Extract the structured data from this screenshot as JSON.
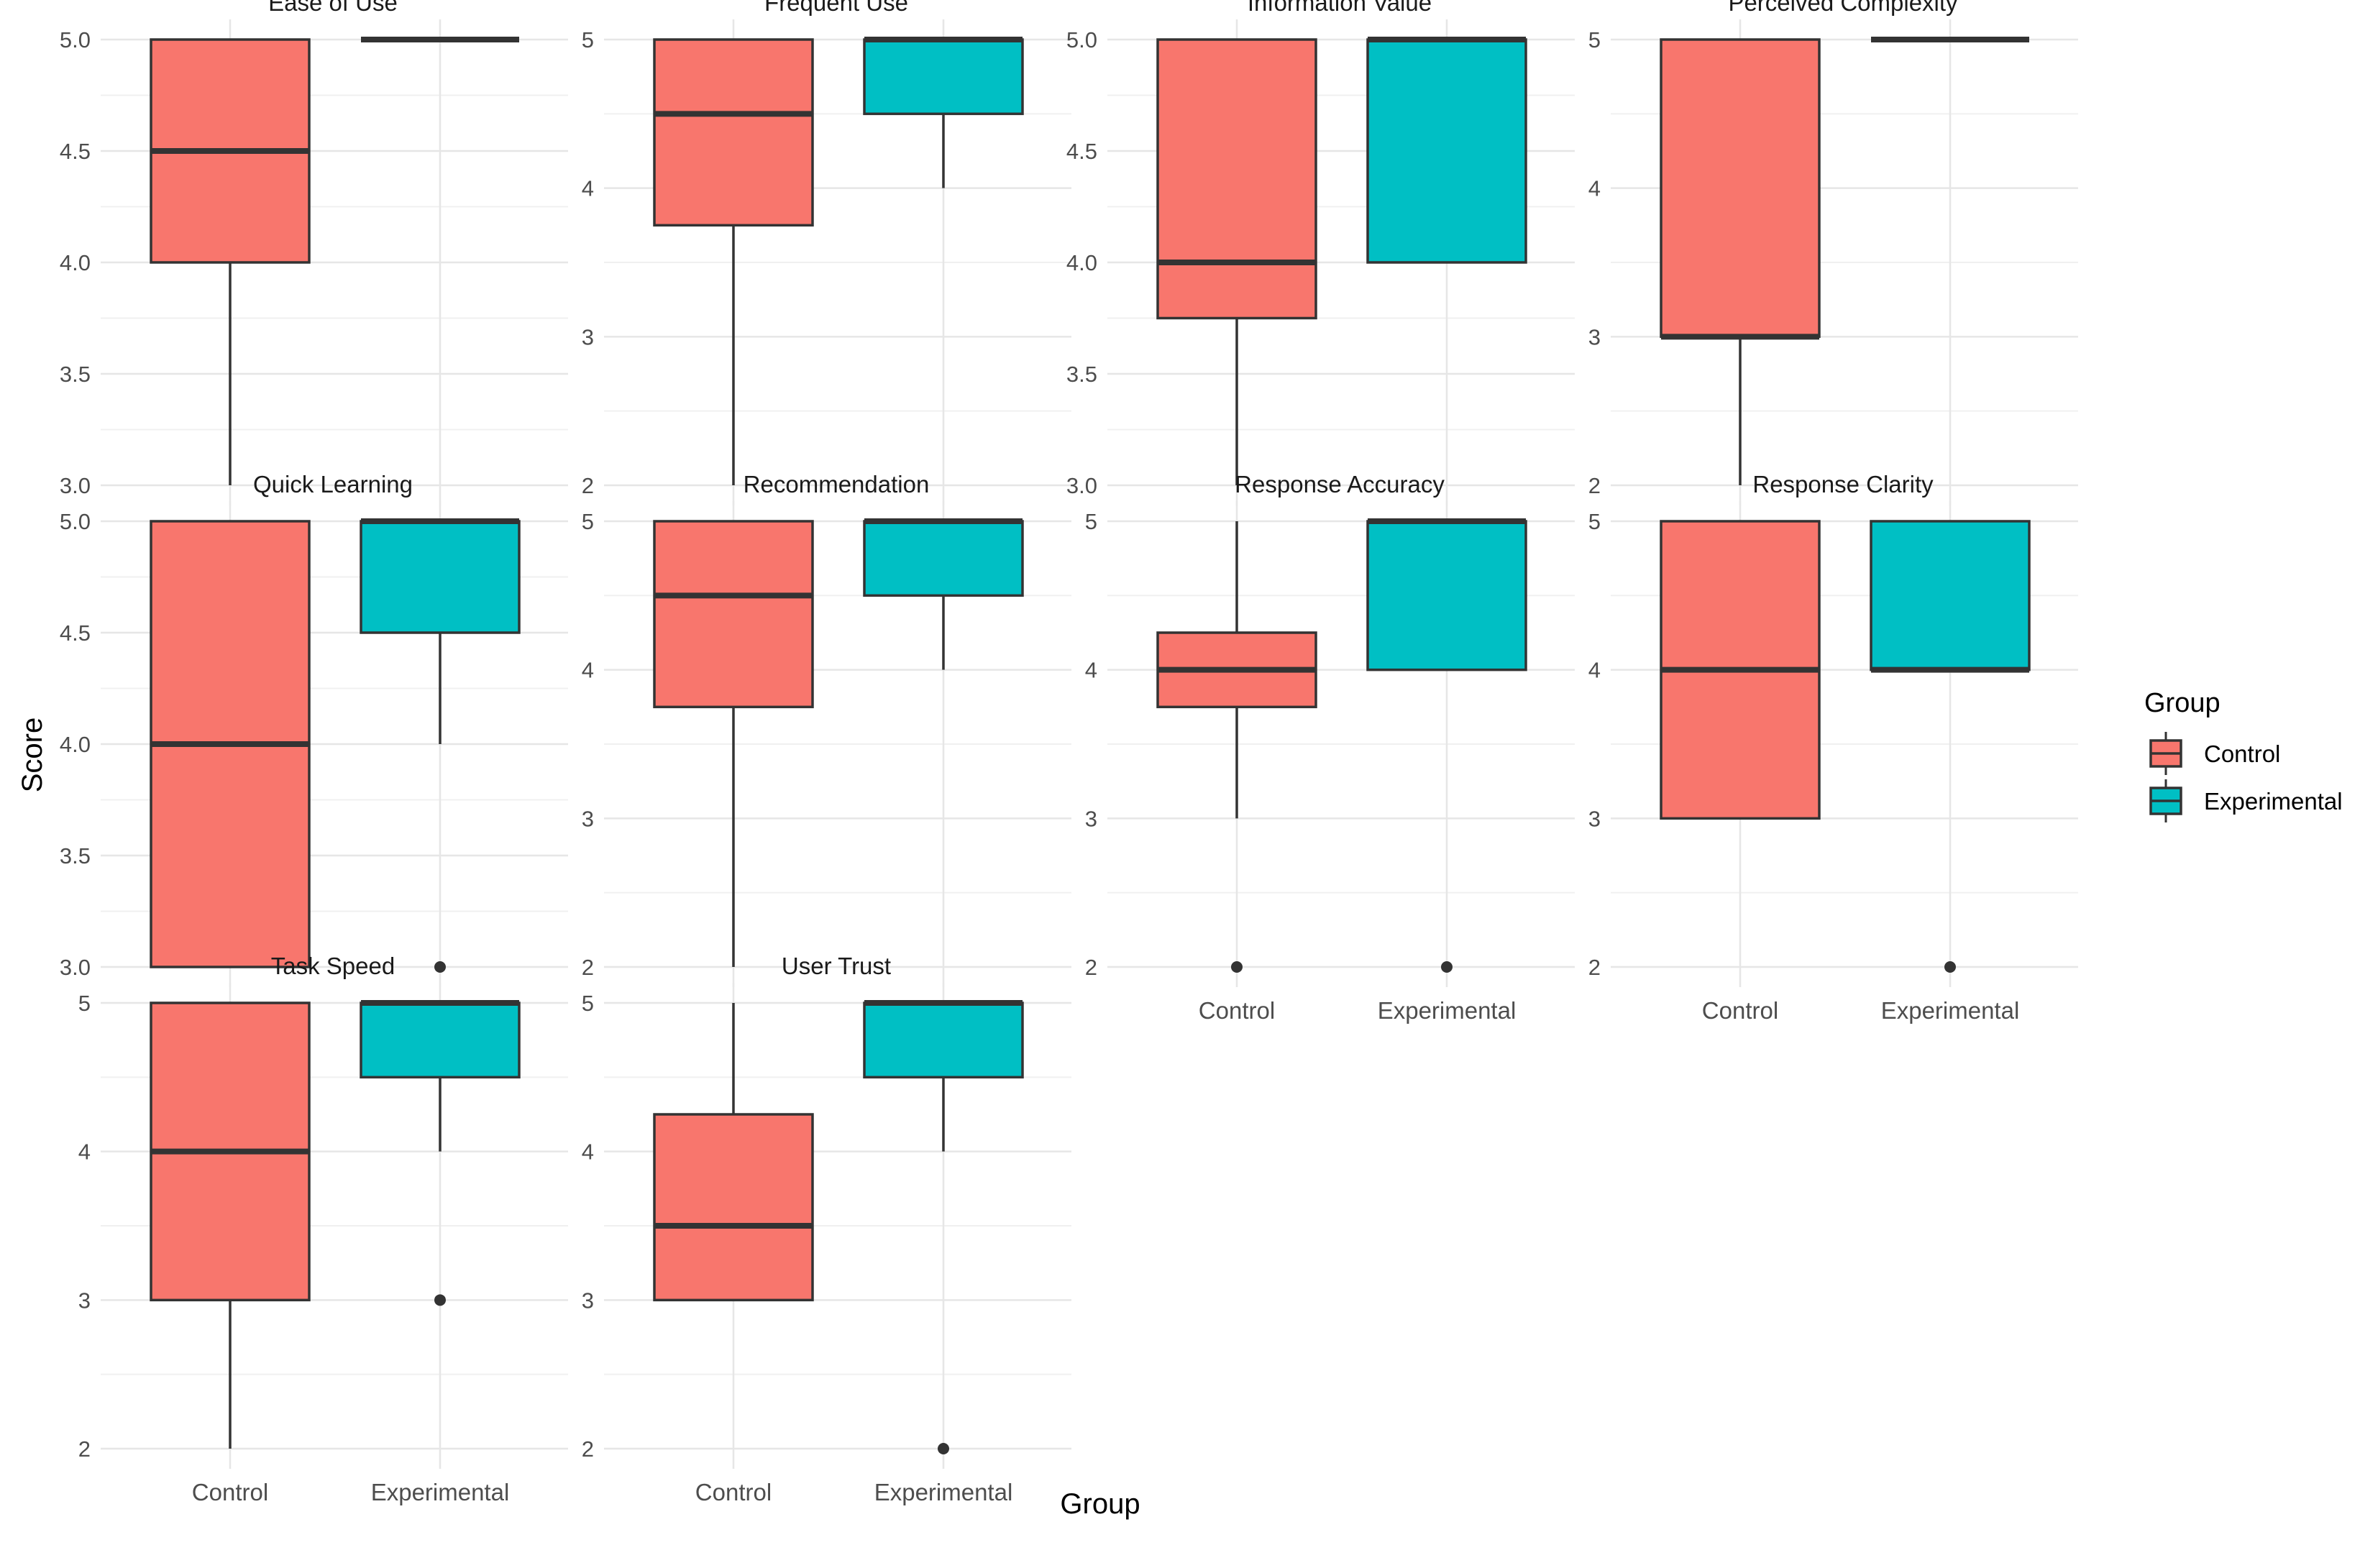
{
  "chart_data": {
    "type": "boxplot",
    "xlabel": "Group",
    "ylabel": "Score",
    "categories": [
      "Control",
      "Experimental"
    ],
    "colors": {
      "Control": "#F8766D",
      "Experimental": "#00BFC4"
    },
    "legend": {
      "title": "Group",
      "entries": [
        "Control",
        "Experimental"
      ],
      "position": "right"
    },
    "panels": [
      {
        "title": "Ease of Use",
        "ylim": [
          3.0,
          5.0
        ],
        "yticks": [
          "3.0",
          "3.5",
          "4.0",
          "4.5",
          "5.0"
        ],
        "boxes": [
          {
            "group": "Control",
            "low": 3.0,
            "q1": 4.0,
            "median": 4.5,
            "q3": 5.0,
            "high": 5.0,
            "outliers": []
          },
          {
            "group": "Experimental",
            "low": 5.0,
            "q1": 5.0,
            "median": 5.0,
            "q3": 5.0,
            "high": 5.0,
            "outliers": []
          }
        ]
      },
      {
        "title": "Frequent Use",
        "ylim": [
          2,
          5
        ],
        "yticks": [
          "2",
          "3",
          "4",
          "5"
        ],
        "boxes": [
          {
            "group": "Control",
            "low": 2,
            "q1": 3.75,
            "median": 4.5,
            "q3": 5,
            "high": 5,
            "outliers": []
          },
          {
            "group": "Experimental",
            "low": 4,
            "q1": 4.5,
            "median": 5,
            "q3": 5,
            "high": 5,
            "outliers": []
          }
        ]
      },
      {
        "title": "Information Value",
        "ylim": [
          3.0,
          5.0
        ],
        "yticks": [
          "3.0",
          "3.5",
          "4.0",
          "4.5",
          "5.0"
        ],
        "boxes": [
          {
            "group": "Control",
            "low": 3.0,
            "q1": 3.75,
            "median": 4.0,
            "q3": 5.0,
            "high": 5.0,
            "outliers": []
          },
          {
            "group": "Experimental",
            "low": 4.0,
            "q1": 4.0,
            "median": 5.0,
            "q3": 5.0,
            "high": 5.0,
            "outliers": []
          }
        ]
      },
      {
        "title": "Perceived Complexity",
        "ylim": [
          2,
          5
        ],
        "yticks": [
          "2",
          "3",
          "4",
          "5"
        ],
        "boxes": [
          {
            "group": "Control",
            "low": 2,
            "q1": 3,
            "median": 3,
            "q3": 5,
            "high": 5,
            "outliers": []
          },
          {
            "group": "Experimental",
            "low": 5,
            "q1": 5,
            "median": 5,
            "q3": 5,
            "high": 5,
            "outliers": []
          }
        ]
      },
      {
        "title": "Quick Learning",
        "ylim": [
          3.0,
          5.0
        ],
        "yticks": [
          "3.0",
          "3.5",
          "4.0",
          "4.5",
          "5.0"
        ],
        "boxes": [
          {
            "group": "Control",
            "low": 3.0,
            "q1": 3.0,
            "median": 4.0,
            "q3": 5.0,
            "high": 5.0,
            "outliers": []
          },
          {
            "group": "Experimental",
            "low": 4.0,
            "q1": 4.5,
            "median": 5.0,
            "q3": 5.0,
            "high": 5.0,
            "outliers": [
              3.0
            ]
          }
        ]
      },
      {
        "title": "Recommendation",
        "ylim": [
          2,
          5
        ],
        "yticks": [
          "2",
          "3",
          "4",
          "5"
        ],
        "boxes": [
          {
            "group": "Control",
            "low": 2,
            "q1": 3.75,
            "median": 4.5,
            "q3": 5,
            "high": 5,
            "outliers": []
          },
          {
            "group": "Experimental",
            "low": 4,
            "q1": 4.5,
            "median": 5,
            "q3": 5,
            "high": 5,
            "outliers": []
          }
        ]
      },
      {
        "title": "Response Accuracy",
        "ylim": [
          2,
          5
        ],
        "yticks": [
          "2",
          "3",
          "4",
          "5"
        ],
        "boxes": [
          {
            "group": "Control",
            "low": 3,
            "q1": 3.75,
            "median": 4,
            "q3": 4.25,
            "high": 5,
            "outliers": [
              2
            ]
          },
          {
            "group": "Experimental",
            "low": 4,
            "q1": 4,
            "median": 5,
            "q3": 5,
            "high": 5,
            "outliers": [
              2
            ]
          }
        ]
      },
      {
        "title": "Response Clarity",
        "ylim": [
          2,
          5
        ],
        "yticks": [
          "2",
          "3",
          "4",
          "5"
        ],
        "boxes": [
          {
            "group": "Control",
            "low": 3,
            "q1": 3,
            "median": 4,
            "q3": 5,
            "high": 5,
            "outliers": []
          },
          {
            "group": "Experimental",
            "low": 4,
            "q1": 4,
            "median": 4,
            "q3": 5,
            "high": 5,
            "outliers": [
              2
            ]
          }
        ]
      },
      {
        "title": "Task Speed",
        "ylim": [
          2,
          5
        ],
        "yticks": [
          "2",
          "3",
          "4",
          "5"
        ],
        "boxes": [
          {
            "group": "Control",
            "low": 2,
            "q1": 3,
            "median": 4,
            "q3": 5,
            "high": 5,
            "outliers": []
          },
          {
            "group": "Experimental",
            "low": 4,
            "q1": 4.5,
            "median": 5,
            "q3": 5,
            "high": 5,
            "outliers": [
              3
            ]
          }
        ]
      },
      {
        "title": "User Trust",
        "ylim": [
          2,
          5
        ],
        "yticks": [
          "2",
          "3",
          "4",
          "5"
        ],
        "boxes": [
          {
            "group": "Control",
            "low": 3,
            "q1": 3,
            "median": 3.5,
            "q3": 4.25,
            "high": 5,
            "outliers": []
          },
          {
            "group": "Experimental",
            "low": 4,
            "q1": 4.5,
            "median": 5,
            "q3": 5,
            "high": 5,
            "outliers": [
              2
            ]
          }
        ]
      }
    ]
  }
}
